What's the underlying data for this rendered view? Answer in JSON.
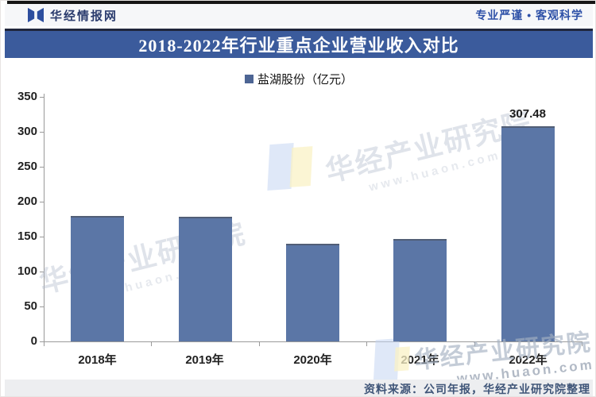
{
  "header": {
    "brand": "华经情报网",
    "slogan": "专业严谨 • 客观科学"
  },
  "title": "2018-2022年行业重点企业营业收入对比",
  "legend": {
    "label": "盐湖股份（亿元）",
    "marker_color": "#4d6594"
  },
  "chart_data": {
    "type": "bar",
    "title": "2018-2022年行业重点企业营业收入对比",
    "series_name": "盐湖股份（亿元）",
    "unit": "亿元",
    "categories": [
      "2018年",
      "2019年",
      "2020年",
      "2021年",
      "2022年"
    ],
    "values": [
      180,
      178,
      140,
      147,
      307.48
    ],
    "data_labels": [
      null,
      null,
      null,
      null,
      "307.48"
    ],
    "ylim": [
      0,
      350
    ],
    "ytick_step": 50,
    "ytick_labels": [
      "0",
      "50",
      "100",
      "150",
      "200",
      "250",
      "300",
      "350"
    ],
    "grid": false,
    "legend_position": "top",
    "bar_color": "#5b76a6"
  },
  "watermarks": {
    "diagonal_text": "华经产业研究院",
    "url_text": "www.huaon.com",
    "corner_text": "华经产业研究院",
    "corner_url": "www.huaon.com"
  },
  "footer": {
    "source": "资料来源：公司年报，华经产业研究院整理"
  },
  "colors": {
    "title_bar": "#3b5b9c",
    "top_bar": "#151515",
    "bar": "#5b76a6",
    "brand_blue": "#2d50a7"
  }
}
